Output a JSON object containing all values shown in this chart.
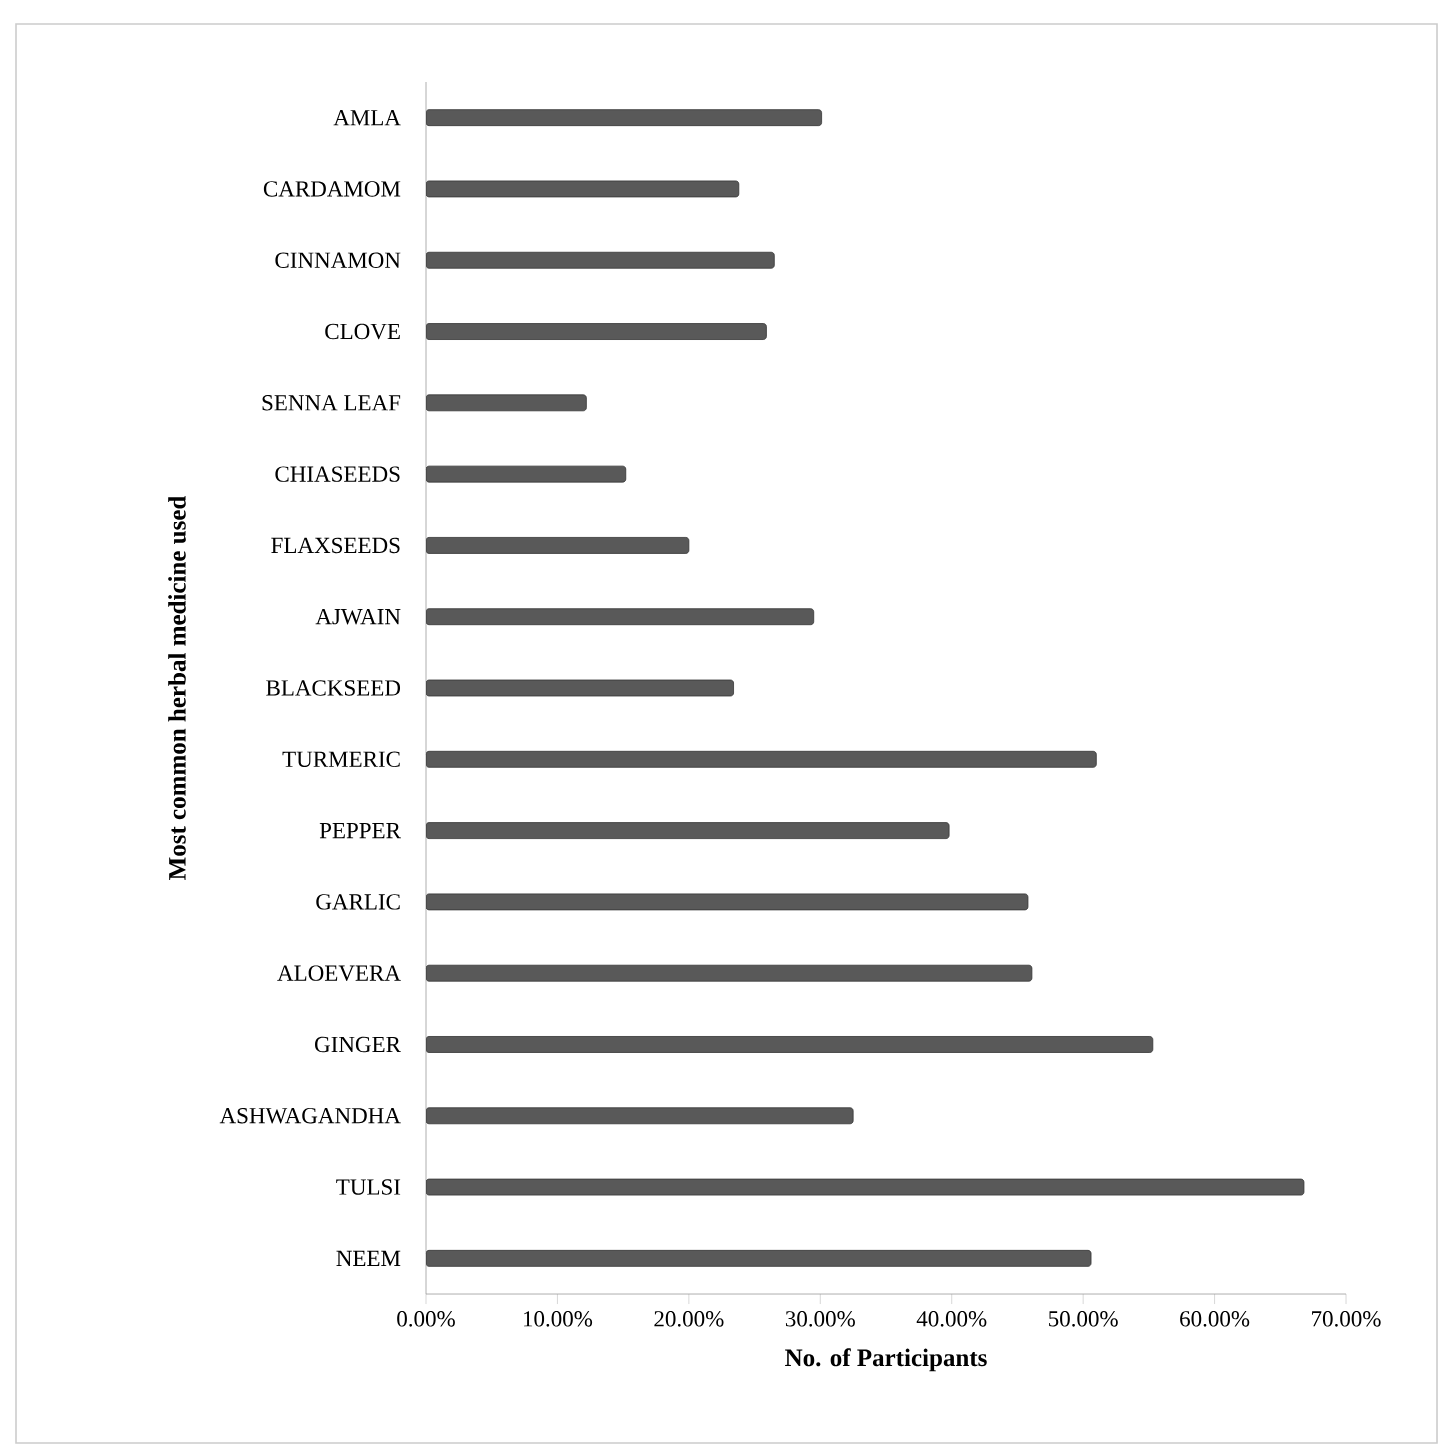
{
  "chart_data": {
    "type": "bar",
    "orientation": "horizontal",
    "xlabel": "No. of Participants",
    "ylabel": "Most common herbal medicine used",
    "categories": [
      "AMLA",
      "CARDAMOM",
      "CINNAMON",
      "CLOVE",
      "SENNA LEAF",
      "CHIASEEDS",
      "FLAXSEEDS",
      "AJWAIN",
      "BLACKSEED",
      "TURMERIC",
      "PEPPER",
      "GARLIC",
      "ALOEVERA",
      "GINGER",
      "ASHWAGANDHA",
      "TULSI",
      "NEEM"
    ],
    "values": [
      30.1,
      23.8,
      26.5,
      25.9,
      12.2,
      15.2,
      20.0,
      29.5,
      23.4,
      51.0,
      39.8,
      45.8,
      46.1,
      55.3,
      32.5,
      66.8,
      50.6
    ],
    "color": "#595959",
    "xlim": [
      0,
      70
    ],
    "xticks": [
      {
        "value": 0,
        "label": "0.00%"
      },
      {
        "value": 10,
        "label": "10.00%"
      },
      {
        "value": 20,
        "label": "20.00%"
      },
      {
        "value": 30,
        "label": "30.00%"
      },
      {
        "value": 40,
        "label": "40.00%"
      },
      {
        "value": 50,
        "label": "50.00%"
      },
      {
        "value": 60,
        "label": "60.00%"
      },
      {
        "value": 70,
        "label": "70.00%"
      }
    ]
  }
}
